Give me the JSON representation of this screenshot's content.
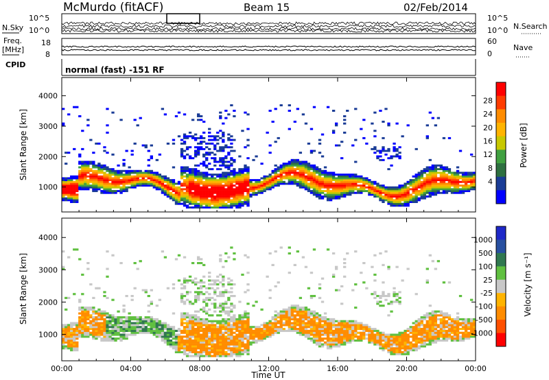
{
  "header": {
    "station": "McMurdo (fitACF)",
    "beam": "Beam 15",
    "date": "02/Feb/2014"
  },
  "small_panels": {
    "left_top": "N.Sky",
    "left_mid_1": "Freq.",
    "left_mid_2": "[MHz]",
    "left_bottom": "CPID",
    "right_top": "N.Search",
    "right_mid": "Nave",
    "noise_ticks_left": [
      "10^5",
      "10^0"
    ],
    "noise_ticks_right": [
      "10^5",
      "10^0"
    ],
    "freq_ticks_left": [
      "18",
      "8"
    ],
    "nave_ticks_right": [
      "60",
      "0"
    ],
    "cpid_text": "normal (fast) -151 RF"
  },
  "chart_data": [
    {
      "type": "heatmap",
      "panel": "power",
      "ylabel": "Slant Range [km]",
      "xlabel": "",
      "ylim": [
        180,
        4600
      ],
      "yticks": [
        "1000",
        "2000",
        "3000",
        "4000"
      ],
      "colorbar_label": "Power [dB]",
      "colorbar_ticks": [
        "28",
        "24",
        "20",
        "16",
        "12",
        "8",
        "4"
      ],
      "colorbar_colors": [
        "#ff0000",
        "#ff3c00",
        "#ff8c00",
        "#ffb400",
        "#c8c800",
        "#40a040",
        "#2e7040",
        "#1a3c96",
        "#0000ff"
      ]
    },
    {
      "type": "heatmap",
      "panel": "velocity",
      "ylabel": "Slant Range [km]",
      "xlabel": "Time UT",
      "ylim": [
        180,
        4600
      ],
      "yticks": [
        "1000",
        "2000",
        "3000",
        "4000"
      ],
      "xticks": [
        "00:00",
        "04:00",
        "08:00",
        "12:00",
        "16:00",
        "20:00",
        "00:00"
      ],
      "colorbar_label": "Velocity [m s⁻¹]",
      "colorbar_ticks": [
        "1000",
        "500",
        "100",
        "25",
        "-25",
        "-100",
        "-500",
        "-1000"
      ],
      "colorbar_colors": [
        "#1e28c8",
        "#2850a0",
        "#307850",
        "#60c040",
        "#c8c8c8",
        "#ffb400",
        "#ff8c00",
        "#ff5000",
        "#ff0000"
      ]
    }
  ]
}
